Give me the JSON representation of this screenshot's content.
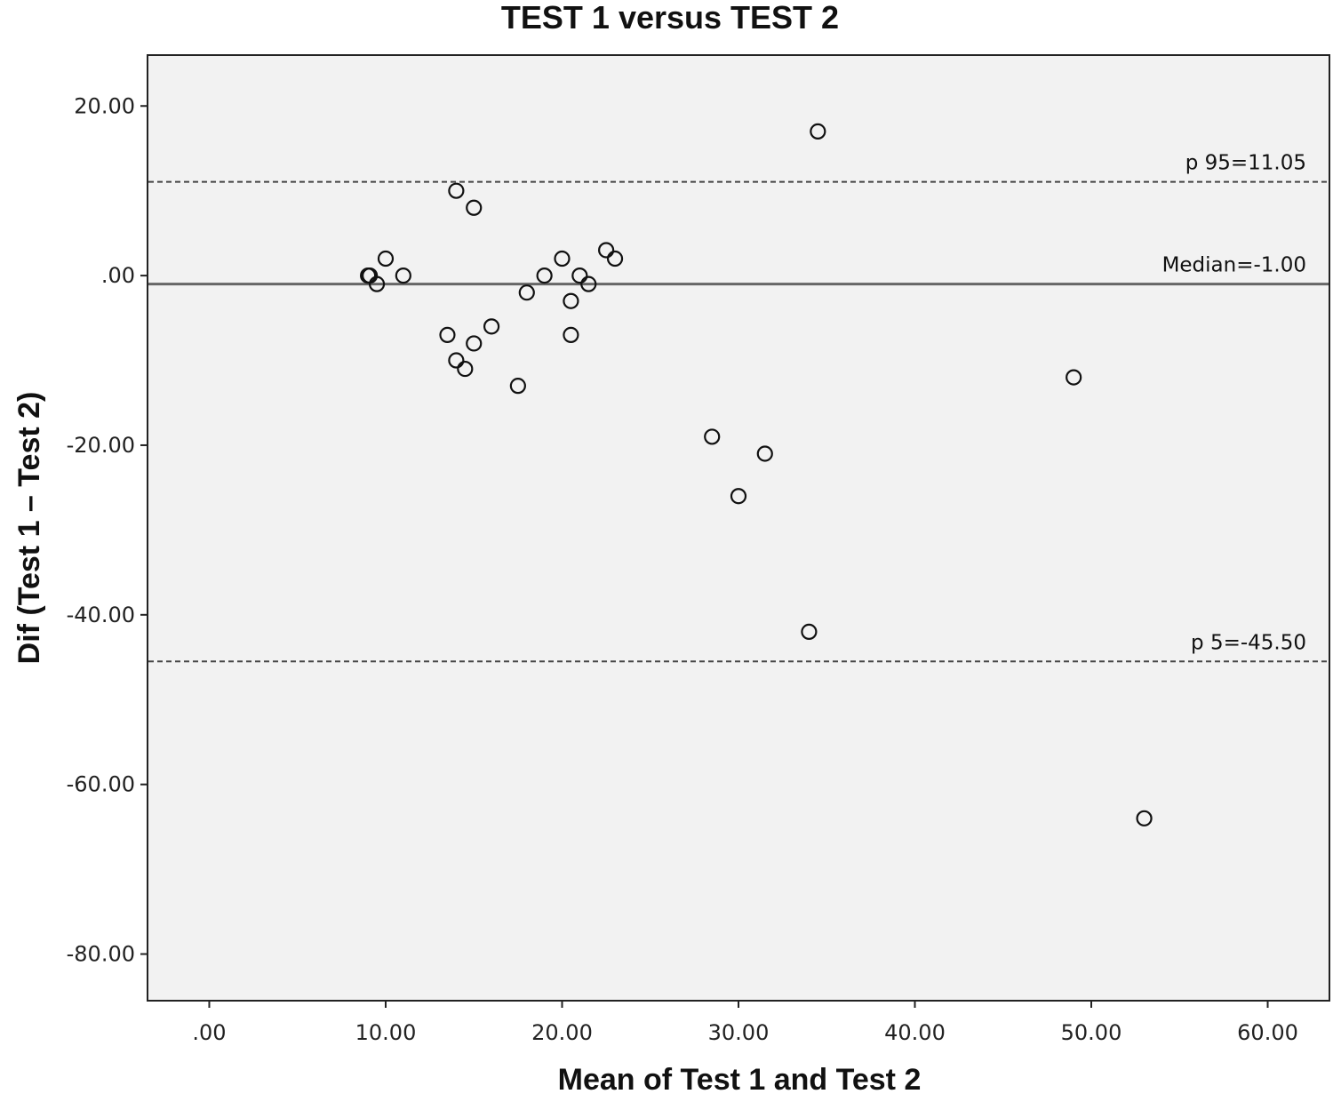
{
  "chart_data": {
    "type": "scatter",
    "title": "TEST 1 versus TEST 2",
    "xlabel": "Mean of Test 1 and Test 2",
    "ylabel": "Dif (Test 1 – Test 2)",
    "xlim": [
      -3.5,
      63.5
    ],
    "ylim": [
      -85.5,
      26
    ],
    "x_ticks": [
      0,
      10,
      20,
      30,
      40,
      50,
      60
    ],
    "x_tick_labels": [
      ".00",
      "10.00",
      "20.00",
      "30.00",
      "40.00",
      "50.00",
      "60.00"
    ],
    "y_ticks": [
      20,
      0,
      -20,
      -40,
      -60,
      -80
    ],
    "y_tick_labels": [
      "20.00",
      ".00",
      "-20.00",
      "-40.00",
      "-60.00",
      "-80.00"
    ],
    "grid": false,
    "plot_background": "#f2f2f2",
    "reference_lines": [
      {
        "label": "p 95=11.05",
        "value": 11.05,
        "style": "dashed"
      },
      {
        "label": "Median=-1.00",
        "value": -1.0,
        "style": "solid"
      },
      {
        "label": "p 5=-45.50",
        "value": -45.5,
        "style": "dashed"
      }
    ],
    "points": [
      {
        "x": 34.5,
        "y": 17
      },
      {
        "x": 14.0,
        "y": 10
      },
      {
        "x": 15.0,
        "y": 8
      },
      {
        "x": 10.0,
        "y": 2
      },
      {
        "x": 9.0,
        "y": 0
      },
      {
        "x": 9.1,
        "y": 0
      },
      {
        "x": 9.5,
        "y": -1
      },
      {
        "x": 11.0,
        "y": 0
      },
      {
        "x": 22.5,
        "y": 3
      },
      {
        "x": 23.0,
        "y": 2
      },
      {
        "x": 20.0,
        "y": 2
      },
      {
        "x": 19.0,
        "y": 0
      },
      {
        "x": 21.0,
        "y": 0
      },
      {
        "x": 21.5,
        "y": -1
      },
      {
        "x": 18.0,
        "y": -2
      },
      {
        "x": 20.5,
        "y": -3
      },
      {
        "x": 16.0,
        "y": -6
      },
      {
        "x": 13.5,
        "y": -7
      },
      {
        "x": 20.5,
        "y": -7
      },
      {
        "x": 15.0,
        "y": -8
      },
      {
        "x": 14.0,
        "y": -10
      },
      {
        "x": 14.5,
        "y": -11
      },
      {
        "x": 17.5,
        "y": -13
      },
      {
        "x": 49.0,
        "y": -12
      },
      {
        "x": 28.5,
        "y": -19
      },
      {
        "x": 31.5,
        "y": -21
      },
      {
        "x": 30.0,
        "y": -26
      },
      {
        "x": 34.0,
        "y": -42
      },
      {
        "x": 53.0,
        "y": -64
      }
    ]
  }
}
